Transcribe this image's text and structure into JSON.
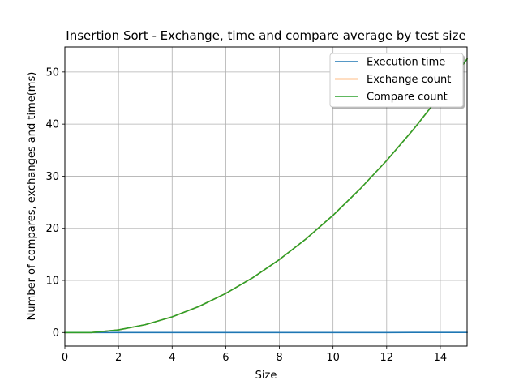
{
  "chart_data": {
    "type": "line",
    "title": "Insertion Sort - Exchange, time and compare average by test size",
    "xlabel": "Size",
    "ylabel": "Number of compares, exchanges and time(ms)",
    "xlim": [
      0,
      15
    ],
    "ylim": [
      -2.6,
      54.8
    ],
    "xticks": [
      0,
      2,
      4,
      6,
      8,
      10,
      12,
      14
    ],
    "yticks": [
      0,
      10,
      20,
      30,
      40,
      50
    ],
    "grid": true,
    "legend_position": "top-right",
    "x": [
      0,
      1,
      2,
      3,
      4,
      5,
      6,
      7,
      8,
      9,
      10,
      11,
      12,
      13,
      14,
      15
    ],
    "series": [
      {
        "name": "Execution time",
        "color": "#1f77b4",
        "values": [
          0,
          0,
          0,
          0,
          0,
          0,
          0,
          0,
          0,
          0,
          0,
          0,
          0,
          0.01,
          0.01,
          0.01
        ]
      },
      {
        "name": "Exchange count",
        "color": "#ff7f0e",
        "values": [
          0,
          0,
          0.5,
          1.5,
          3,
          5,
          7.5,
          10.5,
          14,
          18,
          22.5,
          27.5,
          33,
          39,
          45.5,
          52.5
        ]
      },
      {
        "name": "Compare count",
        "color": "#2ca02c",
        "values": [
          0,
          0,
          0.5,
          1.5,
          3,
          5,
          7.5,
          10.5,
          14,
          18,
          22.5,
          27.5,
          33,
          39,
          45.5,
          52.5
        ]
      }
    ]
  }
}
